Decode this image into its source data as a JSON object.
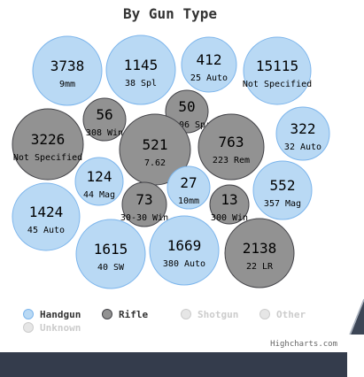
{
  "chart_data": {
    "type": "packed-bubble",
    "title": "By Gun Type",
    "credits": "Highcharts.com",
    "series": [
      {
        "name": "Handgun",
        "color": "#b9d9f4",
        "stroke": "#7cb5ec",
        "visible": true
      },
      {
        "name": "Rifle",
        "color": "#929292",
        "stroke": "#434348",
        "visible": true
      },
      {
        "name": "Shotgun",
        "color": "#cccccc",
        "stroke": "#cccccc",
        "visible": false
      },
      {
        "name": "Other",
        "color": "#cccccc",
        "stroke": "#cccccc",
        "visible": false
      },
      {
        "name": "Unknown",
        "color": "#cccccc",
        "stroke": "#cccccc",
        "visible": false
      }
    ],
    "points": [
      {
        "series": "Handgun",
        "name": "9mm",
        "value": 3738
      },
      {
        "series": "Handgun",
        "name": "38 Spl",
        "value": 1145
      },
      {
        "series": "Handgun",
        "name": "25 Auto",
        "value": 412
      },
      {
        "series": "Handgun",
        "name": "Not Specified",
        "value": 15115
      },
      {
        "series": "Rifle",
        "name": "308 Win",
        "value": 56
      },
      {
        "series": "Rifle",
        "name": "30-06 Spr",
        "value": 50
      },
      {
        "series": "Rifle",
        "name": "Not Specified",
        "value": 3226
      },
      {
        "series": "Handgun",
        "name": "32 Auto",
        "value": 322
      },
      {
        "series": "Rifle",
        "name": "7.62",
        "value": 521
      },
      {
        "series": "Rifle",
        "name": "223 Rem",
        "value": 763
      },
      {
        "series": "Handgun",
        "name": "44 Mag",
        "value": 124
      },
      {
        "series": "Handgun",
        "name": "10mm",
        "value": 27
      },
      {
        "series": "Handgun",
        "name": "357 Mag",
        "value": 552
      },
      {
        "series": "Handgun",
        "name": "45 Auto",
        "value": 1424
      },
      {
        "series": "Rifle",
        "name": "30-30 Win",
        "value": 73
      },
      {
        "series": "Rifle",
        "name": "300 Win",
        "value": 13
      },
      {
        "series": "Handgun",
        "name": "40 SW",
        "value": 1615
      },
      {
        "series": "Handgun",
        "name": "380 Auto",
        "value": 1669
      },
      {
        "series": "Rifle",
        "name": "22 LR",
        "value": 2138
      }
    ]
  }
}
